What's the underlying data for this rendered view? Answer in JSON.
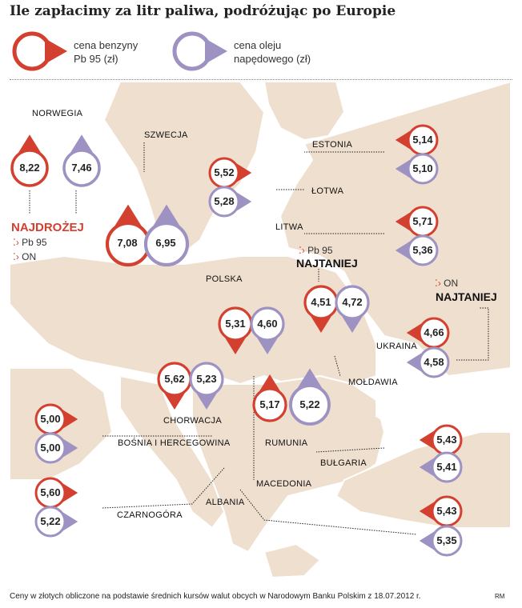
{
  "title": "Ile zapłacimy za litr paliwa, podróżując po Europie",
  "legend": {
    "petrol": "cena benzyny\nPb 95 (zł)",
    "diesel": "cena oleju\nnapędowego (zł)"
  },
  "colors": {
    "petrol": "#d4402f",
    "diesel": "#9e92c2",
    "land": "#efdfcf",
    "sea": "#ffffff"
  },
  "countries": {
    "norway": {
      "name": "NORWEGIA",
      "pb95": "8,22",
      "on": "7,46"
    },
    "sweden": {
      "name": "SZWECJA",
      "pb95": "7,08",
      "on": "6,95"
    },
    "estonia": {
      "name": "ESTONIA",
      "pb95": "5,14",
      "on": "5,10"
    },
    "latvia": {
      "name": "ŁOTWA",
      "pb95": "5,52",
      "on": "5,28"
    },
    "lithuania": {
      "name": "LITWA",
      "pb95": "5,71",
      "on": "5,36"
    },
    "poland": {
      "name": "POLSKA",
      "pb95": "5,31",
      "on": "4,60"
    },
    "moldova": {
      "name": "MOŁDAWIA",
      "pb95": "4,51",
      "on": "4,72"
    },
    "ukraine": {
      "name": "UKRAINA",
      "pb95": "4,66",
      "on": "4,58"
    },
    "croatia": {
      "name": "CHORWACJA",
      "pb95": "5,62",
      "on": "5,23"
    },
    "romania": {
      "name": "RUMUNIA",
      "pb95": "5,17",
      "on": "5,22"
    },
    "bosnia": {
      "name": "BOŚNIA I HERCEGOWINA",
      "pb95": "5,00",
      "on": "5,00"
    },
    "bulgaria": {
      "name": "BUŁGARIA",
      "pb95": "5,43",
      "on": "5,41"
    },
    "montenegro": {
      "name": "CZARNOGÓRA",
      "pb95": "5,60",
      "on": "5,22"
    },
    "macedonia": {
      "name": "MACEDONIA",
      "pb95": "",
      "on": ""
    },
    "albania": {
      "name": "ALBANIA",
      "pb95": "5,43",
      "on": "5,35"
    }
  },
  "annotations": {
    "most_expensive": "NAJDROŻEJ",
    "cheapest": "NAJTANIEJ",
    "pb95": "Pb 95",
    "on": "ON"
  },
  "footer": "Ceny w złotych obliczone na podstawie średnich kursów walut obcych w Narodowym Banku Polskim z 18.07.2012 r.",
  "credit": "RM"
}
